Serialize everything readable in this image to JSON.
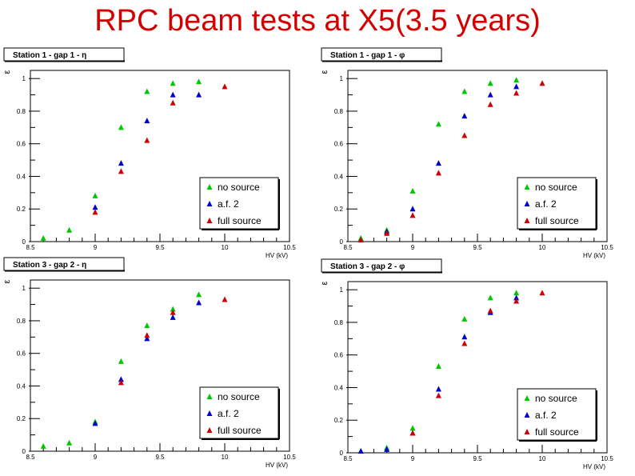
{
  "title": "RPC beam tests at X5(3.5 years)",
  "colors": {
    "title": "#d40000",
    "no_source": "#00c800",
    "af2": "#0000cc",
    "full_source": "#cc0000"
  },
  "chart_data": [
    {
      "type": "scatter",
      "title": "Station 1 - gap 1 - η",
      "xlabel": "HV (kV)",
      "ylabel": "ε",
      "xlim": [
        8.5,
        10.5
      ],
      "ylim": [
        0,
        1.05
      ],
      "xticks": [
        "8.5",
        "9",
        "9.5",
        "10",
        "10.5"
      ],
      "yticks": [
        "0",
        "0.2",
        "0.4",
        "0.6",
        "0.8",
        "1"
      ],
      "legend": [
        "no source",
        "a.f. 2",
        "full source"
      ],
      "legend_position": "bottom-right",
      "series": [
        {
          "name": "no source",
          "x": [
            8.6,
            8.8,
            9.0,
            9.2,
            9.4,
            9.6,
            9.8
          ],
          "y": [
            0.02,
            0.07,
            0.28,
            0.7,
            0.92,
            0.97,
            0.98
          ]
        },
        {
          "name": "a.f. 2",
          "x": [
            9.0,
            9.2,
            9.4,
            9.6,
            9.8
          ],
          "y": [
            0.21,
            0.48,
            0.74,
            0.9,
            0.9
          ]
        },
        {
          "name": "full source",
          "x": [
            9.0,
            9.2,
            9.4,
            9.6,
            10.0
          ],
          "y": [
            0.18,
            0.43,
            0.62,
            0.85,
            0.95
          ]
        }
      ]
    },
    {
      "type": "scatter",
      "title": "Station 1 - gap 1 - φ",
      "xlabel": "HV (kV)",
      "ylabel": "ε",
      "xlim": [
        8.5,
        10.5
      ],
      "ylim": [
        0,
        1.05
      ],
      "xticks": [
        "8.5",
        "9",
        "9.5",
        "10",
        "10.5"
      ],
      "yticks": [
        "0",
        "0.2",
        "0.4",
        "0.6",
        "0.8",
        "1"
      ],
      "legend": [
        "no source",
        "a.f. 2",
        "full source"
      ],
      "legend_position": "bottom-right",
      "series": [
        {
          "name": "no source",
          "x": [
            8.6,
            8.8,
            9.0,
            9.2,
            9.4,
            9.6,
            9.8
          ],
          "y": [
            0.02,
            0.07,
            0.31,
            0.72,
            0.92,
            0.97,
            0.99
          ]
        },
        {
          "name": "a.f. 2",
          "x": [
            8.6,
            8.8,
            9.0,
            9.2,
            9.4,
            9.6,
            9.8
          ],
          "y": [
            0.01,
            0.06,
            0.2,
            0.48,
            0.77,
            0.9,
            0.95
          ]
        },
        {
          "name": "full source",
          "x": [
            8.6,
            8.8,
            9.0,
            9.2,
            9.4,
            9.6,
            9.8,
            10.0
          ],
          "y": [
            0.01,
            0.05,
            0.16,
            0.42,
            0.65,
            0.84,
            0.91,
            0.97
          ]
        }
      ]
    },
    {
      "type": "scatter",
      "title": "Station 3 - gap 2 - η",
      "xlabel": "HV (kV)",
      "ylabel": "ε",
      "xlim": [
        8.5,
        10.5
      ],
      "ylim": [
        0,
        1.05
      ],
      "xticks": [
        "8.5",
        "9",
        "9.5",
        "10",
        "10.5"
      ],
      "yticks": [
        "0",
        "0.2",
        "0.4",
        "0.6",
        "0.8",
        "1"
      ],
      "legend": [
        "no source",
        "a.f. 2",
        "full source"
      ],
      "legend_position": "bottom-right",
      "series": [
        {
          "name": "no source",
          "x": [
            8.6,
            8.8,
            9.0,
            9.2,
            9.4,
            9.6,
            9.8
          ],
          "y": [
            0.03,
            0.05,
            0.18,
            0.55,
            0.77,
            0.87,
            0.96
          ]
        },
        {
          "name": "a.f. 2",
          "x": [
            9.0,
            9.2,
            9.4,
            9.6,
            9.8
          ],
          "y": [
            0.17,
            0.44,
            0.69,
            0.82,
            0.91
          ]
        },
        {
          "name": "full source",
          "x": [
            9.2,
            9.4,
            9.6,
            10.0
          ],
          "y": [
            0.42,
            0.71,
            0.85,
            0.93
          ]
        }
      ]
    },
    {
      "type": "scatter",
      "title": "Station 3 - gap 2 - φ",
      "xlabel": "HV (kV)",
      "ylabel": "ε",
      "xlim": [
        8.5,
        10.5
      ],
      "ylim": [
        0,
        1.05
      ],
      "xticks": [
        "8.5",
        "9",
        "9.5",
        "10",
        "10.5"
      ],
      "yticks": [
        "0",
        "0.2",
        "0.4",
        "0.6",
        "0.8",
        "1"
      ],
      "legend": [
        "no source",
        "a.f. 2",
        "full source"
      ],
      "legend_position": "bottom-right",
      "series": [
        {
          "name": "no source",
          "x": [
            8.6,
            8.8,
            9.0,
            9.2,
            9.4,
            9.6,
            9.8
          ],
          "y": [
            0.01,
            0.03,
            0.15,
            0.53,
            0.82,
            0.95,
            0.98
          ]
        },
        {
          "name": "a.f. 2",
          "x": [
            8.6,
            8.8,
            9.0,
            9.2,
            9.4,
            9.6,
            9.8
          ],
          "y": [
            0.01,
            0.02,
            0.12,
            0.39,
            0.71,
            0.86,
            0.95
          ]
        },
        {
          "name": "full source",
          "x": [
            9.0,
            9.2,
            9.4,
            9.6,
            9.8,
            10.0
          ],
          "y": [
            0.12,
            0.35,
            0.67,
            0.87,
            0.93,
            0.98
          ]
        }
      ]
    }
  ]
}
